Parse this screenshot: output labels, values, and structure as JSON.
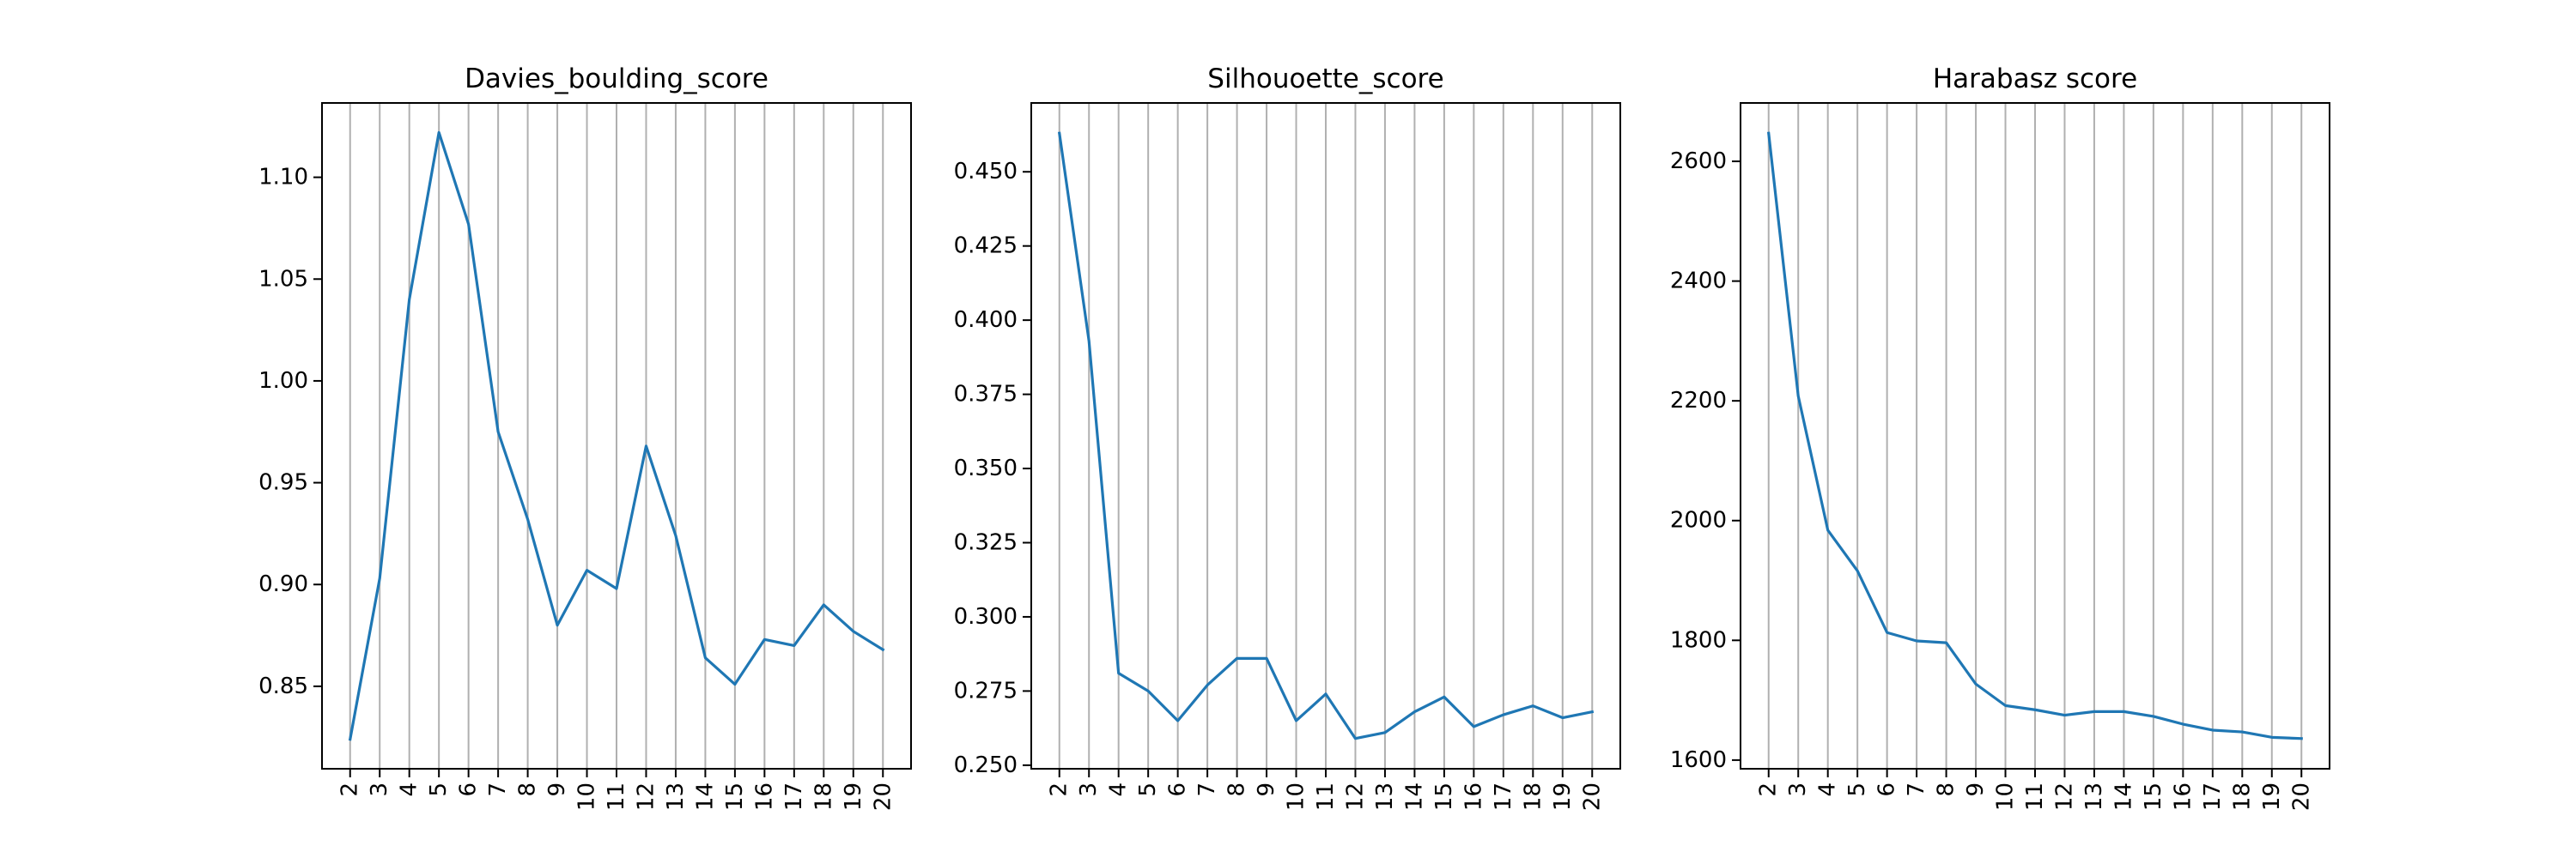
{
  "figure": {
    "background": "#ffffff",
    "line_color": "#1f77b4",
    "grid_color": "#b0b0b0"
  },
  "chart_data": [
    {
      "type": "line",
      "title": "Davies_boulding_score",
      "x": [
        2,
        3,
        4,
        5,
        6,
        7,
        8,
        9,
        10,
        11,
        12,
        13,
        14,
        15,
        16,
        17,
        18,
        19,
        20
      ],
      "series": [
        {
          "values": [
            0.824,
            0.903,
            1.04,
            1.122,
            1.077,
            0.975,
            0.932,
            0.88,
            0.907,
            0.898,
            0.968,
            0.924,
            0.864,
            0.851,
            0.873,
            0.87,
            0.89,
            0.877,
            0.868
          ]
        }
      ],
      "xlim": [
        1.05,
        20.95
      ],
      "ylim": [
        0.8095,
        1.1365
      ],
      "yticks": [
        0.85,
        0.9,
        0.95,
        1.0,
        1.05,
        1.1
      ],
      "ytick_labels": [
        "0.85",
        "0.90",
        "0.95",
        "1.00",
        "1.05",
        "1.10"
      ],
      "xlabel": "",
      "ylabel": "",
      "grid": "x-axis vertical lines"
    },
    {
      "type": "line",
      "title": "Silhouoette_score",
      "x": [
        2,
        3,
        4,
        5,
        6,
        7,
        8,
        9,
        10,
        11,
        12,
        13,
        14,
        15,
        16,
        17,
        18,
        19,
        20
      ],
      "series": [
        {
          "values": [
            0.463,
            0.393,
            0.281,
            0.275,
            0.265,
            0.277,
            0.286,
            0.286,
            0.265,
            0.274,
            0.259,
            0.261,
            0.268,
            0.273,
            0.263,
            0.267,
            0.27,
            0.266,
            0.268
          ]
        }
      ],
      "xlim": [
        1.05,
        20.95
      ],
      "ylim": [
        0.2488,
        0.4732
      ],
      "yticks": [
        0.25,
        0.275,
        0.3,
        0.325,
        0.35,
        0.375,
        0.4,
        0.425,
        0.45
      ],
      "ytick_labels": [
        "0.250",
        "0.275",
        "0.300",
        "0.325",
        "0.350",
        "0.375",
        "0.400",
        "0.425",
        "0.450"
      ],
      "xlabel": "",
      "ylabel": "",
      "grid": "x-axis vertical lines"
    },
    {
      "type": "line",
      "title": "Harabasz score",
      "x": [
        2,
        3,
        4,
        5,
        6,
        7,
        8,
        9,
        10,
        11,
        12,
        13,
        14,
        15,
        16,
        17,
        18,
        19,
        20
      ],
      "series": [
        {
          "values": [
            2647,
            2208,
            1984,
            1916,
            1813,
            1799,
            1796,
            1727,
            1691,
            1684,
            1675,
            1681,
            1681,
            1673,
            1660,
            1650,
            1647,
            1638,
            1636
          ]
        }
      ],
      "xlim": [
        1.05,
        20.95
      ],
      "ylim": [
        1585.5,
        2697.5
      ],
      "yticks": [
        1600,
        1800,
        2000,
        2200,
        2400,
        2600
      ],
      "ytick_labels": [
        "1600",
        "1800",
        "2000",
        "2200",
        "2400",
        "2600"
      ],
      "xlabel": "",
      "ylabel": "",
      "grid": "x-axis vertical lines"
    }
  ]
}
